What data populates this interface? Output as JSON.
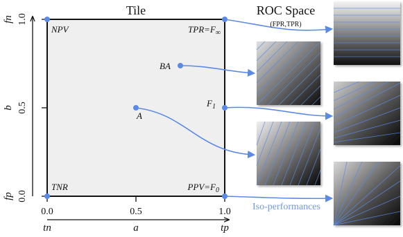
{
  "tile": {
    "title": "Tile",
    "x_ticks": [
      "0.0",
      "0.5",
      "1.0"
    ],
    "y_ticks": [
      "0.0",
      "0.5",
      "1.0"
    ],
    "x_var_labels": [
      "tn",
      "a",
      "tp"
    ],
    "y_var_labels": [
      "fp",
      "b",
      "fn"
    ],
    "points": [
      {
        "label": "NPV",
        "a": 0.0,
        "b": 1.0
      },
      {
        "label_main": "TPR=F",
        "label_sub": "∞",
        "a": 1.0,
        "b": 1.0
      },
      {
        "label": "BA",
        "a": 0.75,
        "b": 0.75
      },
      {
        "label": "A",
        "a": 0.5,
        "b": 0.5
      },
      {
        "label_main": "F",
        "label_sub": "1",
        "a": 1.0,
        "b": 0.5
      },
      {
        "label": "TNR",
        "a": 0.0,
        "b": 0.0
      },
      {
        "label_main": "PPV=F",
        "label_sub": "0",
        "a": 1.0,
        "b": 0.0
      }
    ]
  },
  "roc": {
    "title": "ROC Space",
    "subtitle": "(FPR,TPR)"
  },
  "iso_label": "Iso-performances",
  "colors": {
    "accent": "#5b8ae6",
    "tile_fill": "#efefef",
    "iso_text": "#6f98e6"
  }
}
